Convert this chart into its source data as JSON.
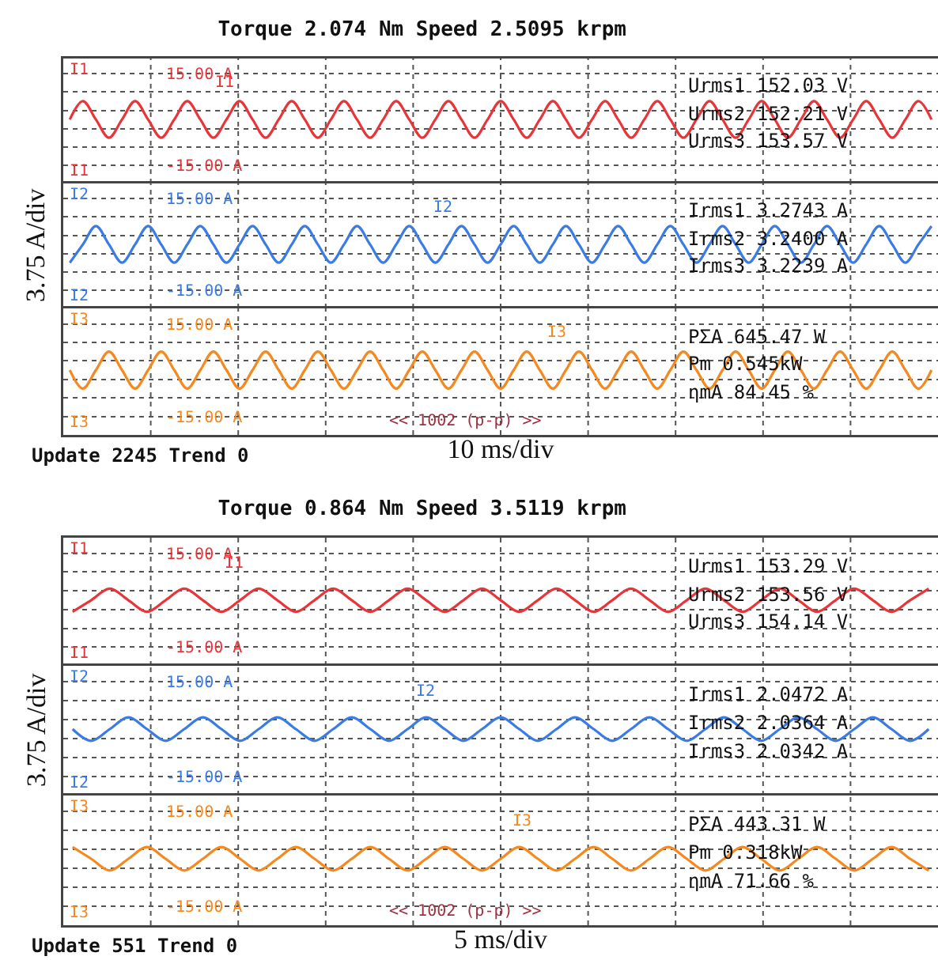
{
  "chart_data": [
    {
      "type": "line",
      "title": "Torque 2.074 Nm Speed 2.5095 krpm",
      "categories": [
        null,
        null,
        null,
        null,
        null,
        null,
        null,
        null,
        null,
        null,
        null,
        null,
        null,
        null,
        null,
        null,
        null,
        null,
        null,
        null,
        null,
        null,
        null,
        null,
        null,
        null,
        null,
        null,
        null,
        null,
        null,
        null,
        null,
        null,
        null,
        null,
        null,
        null,
        null,
        null,
        null,
        null,
        null,
        null,
        null,
        null,
        null,
        null,
        null,
        null,
        null,
        null,
        null,
        null,
        null,
        null,
        null,
        null,
        null,
        null,
        null,
        null,
        null,
        null,
        null,
        null,
        null
      ],
      "series": [
        {
          "name": "I1",
          "color": "#e8353a",
          "values": [
            0,
            6,
            0,
            -6,
            0,
            6,
            0,
            -6,
            0,
            6,
            0,
            -6,
            0,
            6,
            0,
            -6,
            0,
            6,
            0,
            -6,
            0,
            6,
            0,
            -6,
            0,
            6,
            0,
            -6,
            0,
            6,
            0,
            -6,
            0,
            6,
            0,
            -6,
            0,
            6,
            0,
            -6,
            0,
            6,
            0,
            -6,
            0,
            6,
            0,
            -6,
            0,
            6,
            0,
            -6,
            0,
            6,
            0,
            -6,
            0,
            6,
            0,
            -6,
            0,
            6,
            0,
            -6,
            0,
            6,
            0
          ]
        }
      ],
      "ylim": [
        -21,
        20
      ],
      "yticks": [
        {
          "value": 15,
          "label": "15.00 A"
        },
        {
          "value": 9,
          "label": null
        },
        {
          "value": 3,
          "label": null
        },
        {
          "value": -3,
          "label": null
        },
        {
          "value": -9,
          "label": null
        },
        {
          "value": -15,
          "label": "-15.00 A"
        }
      ],
      "grid": true,
      "tick_labels": "y",
      "annotations": [
        "Urms1 152.03 V",
        "Urms2 152.21 V",
        "Urms3 153.57 V"
      ]
    },
    {
      "type": "line",
      "ylabel": "3.75 A/div",
      "categories": [
        null,
        null,
        null,
        null,
        null,
        null,
        null,
        null,
        null,
        null,
        null,
        null,
        null,
        null,
        null,
        null,
        null,
        null,
        null,
        null,
        null,
        null,
        null,
        null,
        null,
        null,
        null,
        null,
        null,
        null,
        null,
        null,
        null,
        null,
        null,
        null,
        null,
        null,
        null,
        null,
        null,
        null,
        null,
        null,
        null,
        null,
        null,
        null,
        null,
        null,
        null,
        null,
        null,
        null,
        null,
        null,
        null,
        null,
        null,
        null,
        null,
        null,
        null,
        null,
        null,
        null,
        null
      ],
      "series": [
        {
          "name": "I2",
          "color": "#3b7be6",
          "values": [
            -6,
            0,
            6,
            0,
            -6,
            0,
            6,
            0,
            -6,
            0,
            6,
            0,
            -6,
            0,
            6,
            0,
            -6,
            0,
            6,
            0,
            -6,
            0,
            6,
            0,
            -6,
            0,
            6,
            0,
            -6,
            0,
            6,
            0,
            -6,
            0,
            6,
            0,
            -6,
            0,
            6,
            0,
            -6,
            0,
            6,
            0,
            -6,
            0,
            6,
            0,
            -6,
            0,
            6,
            0,
            -6,
            0,
            6,
            0,
            -6,
            0,
            6,
            0,
            -6,
            0,
            6,
            0,
            -6,
            0,
            6
          ]
        }
      ],
      "ylim": [
        -21,
        20
      ],
      "yticks": [
        {
          "value": 15,
          "label": "15.00 A"
        },
        {
          "value": 9,
          "label": null
        },
        {
          "value": 3,
          "label": null
        },
        {
          "value": -3,
          "label": null
        },
        {
          "value": -9,
          "label": null
        },
        {
          "value": -15,
          "label": "-15.00 A"
        }
      ],
      "grid": true,
      "tick_labels": "y",
      "annotations": [
        "Irms1 3.2743 A",
        "Irms2 3.2400 A",
        "Irms3 3.2239 A"
      ]
    },
    {
      "type": "line",
      "xlabel": "10 ms/div",
      "categories": [
        null,
        null,
        null,
        null,
        null,
        null,
        null,
        null,
        null,
        null,
        null,
        null,
        null,
        null,
        null,
        null,
        null,
        null,
        null,
        null,
        null,
        null,
        null,
        null,
        null,
        null,
        null,
        null,
        null,
        null,
        null,
        null,
        null,
        null,
        null,
        null,
        null,
        null,
        null,
        null,
        null,
        null,
        null,
        null,
        null,
        null,
        null,
        null,
        null,
        null,
        null,
        null,
        null,
        null,
        null,
        null,
        null,
        null,
        null,
        null,
        null,
        null,
        null,
        null,
        null,
        null,
        null
      ],
      "series": [
        {
          "name": "I3",
          "color": "#f5891f",
          "values": [
            0,
            -6,
            0,
            6,
            0,
            -6,
            0,
            6,
            0,
            -6,
            0,
            6,
            0,
            -6,
            0,
            6,
            0,
            -6,
            0,
            6,
            0,
            -6,
            0,
            6,
            0,
            -6,
            0,
            6,
            0,
            -6,
            0,
            6,
            0,
            -6,
            0,
            6,
            0,
            -6,
            0,
            6,
            0,
            -6,
            0,
            6,
            0,
            -6,
            0,
            6,
            0,
            -6,
            0,
            6,
            0,
            -6,
            0,
            6,
            0,
            -6,
            0,
            6,
            0,
            -6,
            0,
            6,
            0,
            -6,
            0
          ]
        }
      ],
      "ylim": [
        -21,
        20
      ],
      "yticks": [
        {
          "value": 15,
          "label": "15.00 A"
        },
        {
          "value": 9,
          "label": null
        },
        {
          "value": 3,
          "label": null
        },
        {
          "value": -3,
          "label": null
        },
        {
          "value": -9,
          "label": null
        },
        {
          "value": -15,
          "label": "-15.00 A"
        }
      ],
      "grid": true,
      "tick_labels": "y",
      "annotations": [
        "PΣA 645.47 W",
        "Pm 0.545kW",
        "ηmA 84.45 %",
        "<< 1002 (p-p) >>",
        "Update 2245 Trend 0"
      ]
    },
    {
      "type": "line",
      "title": "Torque 0.864 Nm Speed 3.5119 krpm",
      "categories": [
        null,
        null,
        null,
        null,
        null,
        null,
        null,
        null,
        null,
        null,
        null,
        null,
        null,
        null,
        null,
        null,
        null,
        null,
        null,
        null,
        null,
        null,
        null,
        null,
        null,
        null,
        null,
        null,
        null,
        null,
        null,
        null,
        null,
        null,
        null,
        null,
        null,
        null,
        null,
        null,
        null,
        null,
        null,
        null,
        null,
        null,
        null
      ],
      "series": [
        {
          "name": "I1",
          "color": "#e8353a",
          "values": [
            -3.7,
            0,
            3.7,
            0,
            -3.7,
            0,
            3.7,
            0,
            -3.7,
            0,
            3.7,
            0,
            -3.7,
            0,
            3.7,
            0,
            -3.7,
            0,
            3.7,
            0,
            -3.7,
            0,
            3.7,
            0,
            -3.7,
            0,
            3.7,
            0,
            -3.7,
            0,
            3.7,
            0,
            -3.7,
            0,
            3.7,
            0,
            -3.7,
            0,
            3.7,
            0,
            -3.7,
            0,
            3.7,
            0,
            -3.7,
            0,
            3.7
          ]
        }
      ],
      "ylim": [
        -21,
        20
      ],
      "yticks": [
        {
          "value": 15,
          "label": "15.00 A"
        },
        {
          "value": 9,
          "label": null
        },
        {
          "value": 3,
          "label": null
        },
        {
          "value": -3,
          "label": null
        },
        {
          "value": -9,
          "label": null
        },
        {
          "value": -15,
          "label": "-15.00 A"
        }
      ],
      "grid": true,
      "tick_labels": "y",
      "annotations": [
        "Urms1 153.29 V",
        "Urms2 153.56 V",
        "Urms3 154.14 V"
      ]
    },
    {
      "type": "line",
      "ylabel": "3.75 A/div",
      "categories": [
        null,
        null,
        null,
        null,
        null,
        null,
        null,
        null,
        null,
        null,
        null,
        null,
        null,
        null,
        null,
        null,
        null,
        null,
        null,
        null,
        null,
        null,
        null,
        null,
        null,
        null,
        null,
        null,
        null,
        null,
        null,
        null,
        null,
        null,
        null,
        null,
        null,
        null,
        null,
        null,
        null,
        null,
        null,
        null,
        null,
        null,
        null
      ],
      "series": [
        {
          "name": "I2",
          "color": "#3b7be6",
          "values": [
            0,
            -3.7,
            0,
            3.7,
            0,
            -3.7,
            0,
            3.7,
            0,
            -3.7,
            0,
            3.7,
            0,
            -3.7,
            0,
            3.7,
            0,
            -3.7,
            0,
            3.7,
            0,
            -3.7,
            0,
            3.7,
            0,
            -3.7,
            0,
            3.7,
            0,
            -3.7,
            0,
            3.7,
            0,
            -3.7,
            0,
            3.7,
            0,
            -3.7,
            0,
            3.7,
            0,
            -3.7,
            0,
            3.7,
            0,
            -3.7,
            0
          ]
        }
      ],
      "ylim": [
        -21,
        20
      ],
      "yticks": [
        {
          "value": 15,
          "label": "15.00 A"
        },
        {
          "value": 9,
          "label": null
        },
        {
          "value": 3,
          "label": null
        },
        {
          "value": -3,
          "label": null
        },
        {
          "value": -9,
          "label": null
        },
        {
          "value": -15,
          "label": "-15.00 A"
        }
      ],
      "grid": true,
      "tick_labels": "y",
      "annotations": [
        "Irms1 2.0472 A",
        "Irms2 2.0364 A",
        "Irms3 2.0342 A"
      ]
    },
    {
      "type": "line",
      "xlabel": "5 ms/div",
      "categories": [
        null,
        null,
        null,
        null,
        null,
        null,
        null,
        null,
        null,
        null,
        null,
        null,
        null,
        null,
        null,
        null,
        null,
        null,
        null,
        null,
        null,
        null,
        null,
        null,
        null,
        null,
        null,
        null,
        null,
        null,
        null,
        null,
        null,
        null,
        null,
        null,
        null,
        null,
        null,
        null,
        null,
        null,
        null,
        null,
        null,
        null,
        null
      ],
      "series": [
        {
          "name": "I3",
          "color": "#f5891f",
          "values": [
            3.7,
            0,
            -3.7,
            0,
            3.7,
            0,
            -3.7,
            0,
            3.7,
            0,
            -3.7,
            0,
            3.7,
            0,
            -3.7,
            0,
            3.7,
            0,
            -3.7,
            0,
            3.7,
            0,
            -3.7,
            0,
            3.7,
            0,
            -3.7,
            0,
            3.7,
            0,
            -3.7,
            0,
            3.7,
            0,
            -3.7,
            0,
            3.7,
            0,
            -3.7,
            0,
            3.7,
            0,
            -3.7,
            0,
            3.7,
            0,
            -3.7
          ]
        }
      ],
      "ylim": [
        -21,
        20
      ],
      "yticks": [
        {
          "value": 15,
          "label": "15.00 A"
        },
        {
          "value": 9,
          "label": null
        },
        {
          "value": 3,
          "label": null
        },
        {
          "value": -3,
          "label": null
        },
        {
          "value": -9,
          "label": null
        },
        {
          "value": -15,
          "label": "-15.00 A"
        }
      ],
      "grid": true,
      "tick_labels": "y",
      "annotations": [
        "PΣA 443.31 W",
        "Pm 0.318kW",
        "ηmA 71.66 %",
        "<< 1002 (p-p) >>",
        "Update 551 Trend 0"
      ]
    }
  ]
}
